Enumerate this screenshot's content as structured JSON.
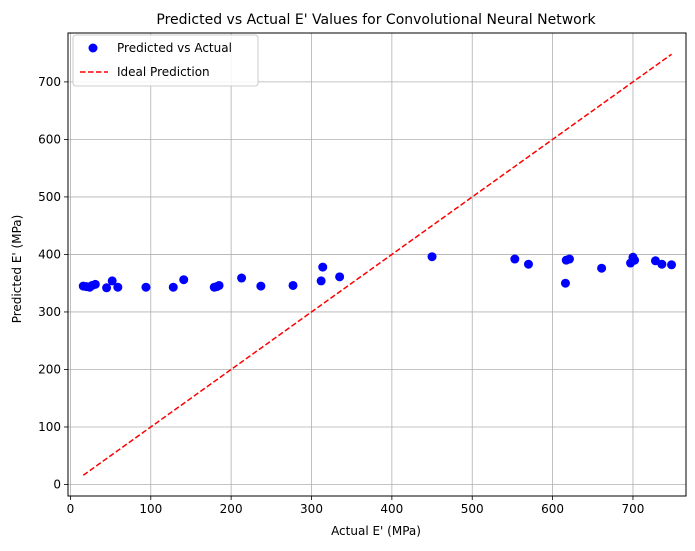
{
  "chart_data": {
    "type": "scatter",
    "title": "Predicted vs Actual E' Values for Convolutional Neural Network",
    "xlabel": "Actual E' (MPa)",
    "ylabel": "Predicted E' (MPa)",
    "xlim": [
      -3,
      766
    ],
    "ylim": [
      -20,
      785
    ],
    "xticks": [
      0,
      100,
      200,
      300,
      400,
      500,
      600,
      700
    ],
    "yticks": [
      0,
      100,
      200,
      300,
      400,
      500,
      600,
      700
    ],
    "grid": true,
    "legend": {
      "location": "upper-left",
      "entries": [
        "Predicted vs Actual",
        "Ideal Prediction"
      ]
    },
    "series": [
      {
        "name": "Predicted vs Actual",
        "kind": "scatter",
        "color": "#0000ff",
        "points": [
          [
            16,
            345
          ],
          [
            20,
            344
          ],
          [
            24,
            343
          ],
          [
            27,
            346
          ],
          [
            31,
            348
          ],
          [
            45,
            342
          ],
          [
            52,
            354
          ],
          [
            59,
            343
          ],
          [
            94,
            343
          ],
          [
            128,
            343
          ],
          [
            141,
            356
          ],
          [
            179,
            343
          ],
          [
            182,
            344
          ],
          [
            185,
            346
          ],
          [
            213,
            359
          ],
          [
            237,
            345
          ],
          [
            277,
            346
          ],
          [
            312,
            354
          ],
          [
            314,
            378
          ],
          [
            335,
            361
          ],
          [
            450,
            396
          ],
          [
            553,
            392
          ],
          [
            570,
            383
          ],
          [
            616,
            350
          ],
          [
            617,
            390
          ],
          [
            621,
            392
          ],
          [
            661,
            376
          ],
          [
            697,
            385
          ],
          [
            700,
            395
          ],
          [
            702,
            390
          ],
          [
            728,
            389
          ],
          [
            736,
            383
          ],
          [
            748,
            382
          ]
        ]
      },
      {
        "name": "Ideal Prediction",
        "kind": "line",
        "style": "dashed",
        "color": "#ff0000",
        "points": [
          [
            16,
            16
          ],
          [
            748,
            748
          ]
        ]
      }
    ]
  }
}
